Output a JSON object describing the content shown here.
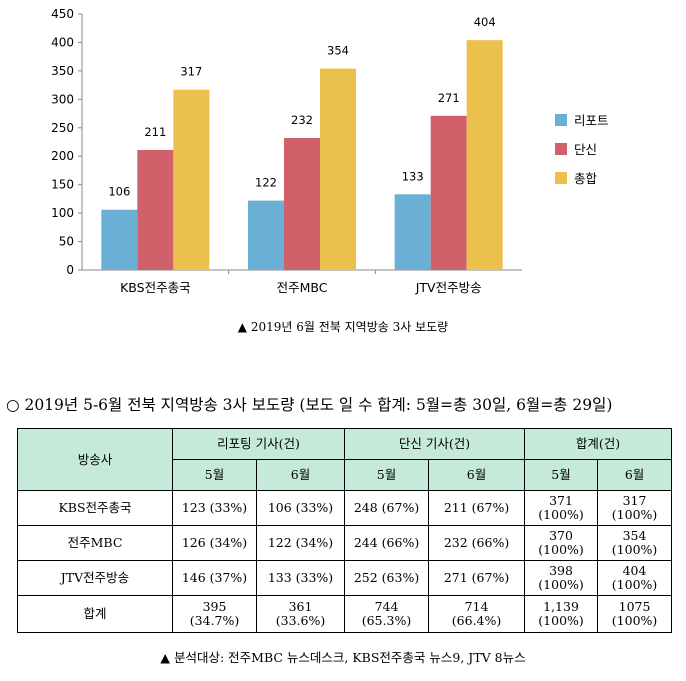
{
  "chart_data": {
    "type": "bar",
    "categories": [
      "KBS전주총국",
      "전주MBC",
      "JTV전주방송"
    ],
    "series": [
      {
        "name": "리포트",
        "color": "#6aafd4",
        "values": [
          106,
          122,
          133
        ]
      },
      {
        "name": "단신",
        "color": "#d0616a",
        "values": [
          211,
          232,
          271
        ]
      },
      {
        "name": "총합",
        "color": "#ecc04c",
        "values": [
          317,
          354,
          404
        ]
      }
    ],
    "ylim": [
      0,
      450
    ],
    "yticks": [
      0,
      50,
      100,
      150,
      200,
      250,
      300,
      350,
      400,
      450
    ],
    "legend": "right",
    "grid": false
  },
  "chart_caption": "▲ 2019년 6월 전북 지역방송 3사 보도량",
  "table_title": "○ 2019년 5-6월 전북 지역방송 3사 보도량 (보도 일 수 합계: 5월=총 30일, 6월=총 29일)",
  "table": {
    "col_station": "방송사",
    "group_report": "리포팅 기사(건)",
    "group_short": "단신 기사(건)",
    "group_total": "합계(건)",
    "months": [
      "5월",
      "6월",
      "5월",
      "6월",
      "5월",
      "6월"
    ],
    "rows": [
      {
        "station": "KBS전주총국",
        "cells": [
          "123 (33%)",
          "106 (33%)",
          "248 (67%)",
          "211 (67%)",
          "371\n(100%)",
          "317\n(100%)"
        ]
      },
      {
        "station": "전주MBC",
        "cells": [
          "126 (34%)",
          "122 (34%)",
          "244 (66%)",
          "232 (66%)",
          "370\n(100%)",
          "354\n(100%)"
        ]
      },
      {
        "station": "JTV전주방송",
        "cells": [
          "146 (37%)",
          "133 (33%)",
          "252 (63%)",
          "271 (67%)",
          "398\n(100%)",
          "404\n(100%)"
        ]
      },
      {
        "station": "합계",
        "cells": [
          "395\n(34.7%)",
          "361\n(33.6%)",
          "744\n(65.3%)",
          "714\n(66.4%)",
          "1,139\n(100%)",
          "1075\n(100%)"
        ]
      }
    ]
  },
  "source_note": "▲ 분석대상: 전주MBC 뉴스데스크, KBS전주총국 뉴스9, JTV 8뉴스"
}
